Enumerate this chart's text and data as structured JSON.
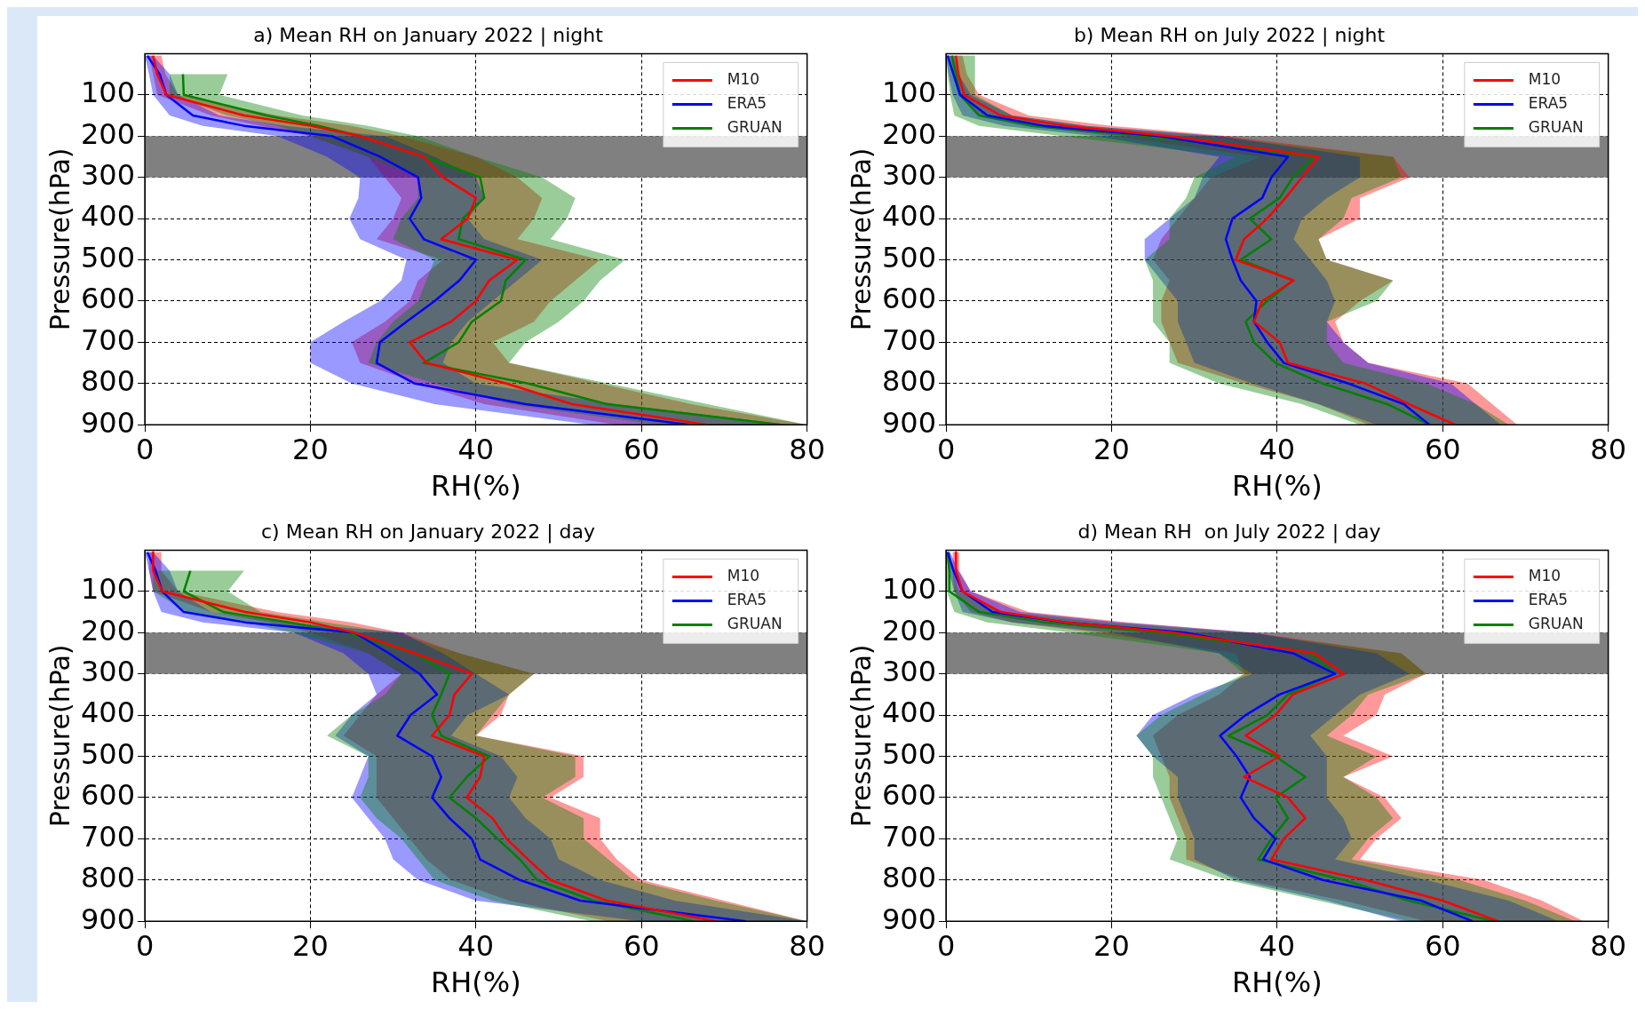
{
  "chart_data": [
    {
      "type": "line",
      "orientation": "horizontal",
      "title": "a) Mean RH on January 2022 | night",
      "xlabel": "RH(%)",
      "ylabel": "Pressure(hPa)",
      "x": [
        5,
        50,
        100,
        150,
        175,
        200,
        250,
        300,
        350,
        400,
        450,
        500,
        550,
        600,
        650,
        700,
        750,
        800,
        850,
        900
      ],
      "xlim": [
        0,
        80
      ],
      "xticks": [
        0,
        20,
        40,
        60,
        80
      ],
      "ylim": [
        900,
        0
      ],
      "yticks": [
        100,
        200,
        300,
        400,
        500,
        600,
        700,
        800,
        900
      ],
      "grid": true,
      "legend": "top right",
      "bands": [
        {
          "axis": "y",
          "from": 200,
          "to": 300,
          "color": "#808080"
        }
      ],
      "series": [
        {
          "name": "M10",
          "color": "#ff0000",
          "values": [
            1,
            1.5,
            2.6,
            12,
            20,
            26,
            33.7,
            36,
            40,
            39,
            35.8,
            45,
            41.6,
            40,
            37,
            32,
            34,
            43.7,
            51.6,
            67.9
          ],
          "lower": [
            0.5,
            1,
            1.5,
            8,
            14,
            20,
            27,
            29,
            31,
            30,
            28,
            36,
            33,
            32,
            29,
            25,
            26,
            33,
            41,
            57
          ],
          "upper": [
            2,
            2.5,
            4,
            16,
            25,
            31,
            40,
            45,
            48,
            47,
            45,
            55,
            52,
            49,
            47,
            42,
            44,
            55,
            66,
            80
          ]
        },
        {
          "name": "ERA5",
          "color": "#0000ff",
          "values": [
            0.3,
            1.8,
            2.6,
            5.8,
            12,
            22.6,
            28.4,
            33,
            33.4,
            32,
            33.7,
            40,
            38,
            35,
            31.6,
            28.4,
            28,
            32.6,
            46,
            65.8
          ],
          "lower": [
            0,
            0.5,
            1,
            3,
            7,
            16,
            22,
            26,
            25.8,
            24.7,
            26,
            31.6,
            31,
            28.4,
            24,
            20,
            20,
            25,
            35,
            54
          ],
          "upper": [
            1,
            3,
            4,
            9,
            17,
            29,
            35,
            40,
            41,
            39,
            41,
            48,
            45,
            42,
            39,
            37,
            36,
            40,
            57,
            78
          ]
        },
        {
          "name": "GRUAN",
          "color": "#008000",
          "values": [
            null,
            4.6,
            4.7,
            14.7,
            21,
            26,
            33.7,
            40.5,
            41,
            38.4,
            37.9,
            46,
            43.6,
            43,
            39.5,
            37.9,
            33.7,
            46.3,
            55.8,
            76.8
          ],
          "lower": [
            null,
            3,
            3,
            10,
            16,
            20,
            27,
            33,
            33,
            31,
            30,
            35,
            34,
            33,
            30,
            28,
            27,
            35,
            44,
            62
          ],
          "upper": [
            null,
            10,
            9,
            19,
            27,
            33,
            40,
            48,
            52,
            51,
            49,
            58,
            55,
            53,
            50,
            46,
            44,
            56,
            68,
            80
          ]
        }
      ]
    },
    {
      "type": "line",
      "orientation": "horizontal",
      "title": "b) Mean RH on July 2022 | night",
      "xlabel": "RH(%)",
      "ylabel": "Pressure(hPa)",
      "x": [
        5,
        50,
        100,
        150,
        175,
        200,
        250,
        300,
        350,
        400,
        450,
        500,
        550,
        600,
        650,
        700,
        750,
        800,
        850,
        900
      ],
      "xlim": [
        0,
        80
      ],
      "xticks": [
        0,
        20,
        40,
        60,
        80
      ],
      "ylim": [
        900,
        0
      ],
      "yticks": [
        100,
        200,
        300,
        400,
        500,
        600,
        700,
        800,
        900
      ],
      "grid": true,
      "legend": "top right",
      "bands": [
        {
          "axis": "y",
          "from": 200,
          "to": 300,
          "color": "#808080"
        }
      ],
      "series": [
        {
          "name": "M10",
          "color": "#ff0000",
          "values": [
            1.2,
            1.5,
            2.2,
            6.6,
            14.4,
            27,
            45,
            43,
            41,
            38.8,
            36,
            35,
            42,
            38.2,
            37.2,
            40.3,
            41.3,
            50.7,
            55.9,
            61.5
          ],
          "lower": [
            0.5,
            1,
            1.5,
            4,
            10,
            20,
            38,
            32,
            30,
            28,
            26,
            25,
            27,
            26,
            26,
            27,
            28,
            36,
            45,
            51
          ],
          "upper": [
            2,
            2.5,
            4,
            10,
            20,
            34,
            54,
            56,
            50,
            50,
            45,
            46,
            54,
            50,
            47,
            48,
            51,
            63,
            66,
            69
          ]
        },
        {
          "name": "ERA5",
          "color": "#0000ff",
          "values": [
            0.2,
            0.9,
            1.7,
            5,
            11.8,
            25.8,
            41.3,
            39.3,
            38.2,
            34.6,
            33.8,
            34.6,
            35.6,
            37.5,
            37.2,
            38.8,
            40.8,
            48.6,
            55.3,
            58.4
          ],
          "lower": [
            0,
            0.3,
            0.8,
            2,
            7,
            18,
            33,
            31,
            30,
            27,
            24,
            24,
            26,
            28,
            28,
            29,
            30,
            37,
            45,
            52
          ],
          "upper": [
            1,
            1.5,
            3,
            8,
            17,
            33,
            50,
            50,
            46,
            43,
            42,
            44,
            46,
            47,
            46,
            48,
            51,
            61,
            64,
            67
          ]
        },
        {
          "name": "GRUAN",
          "color": "#008000",
          "values": [
            0.7,
            1.2,
            1.7,
            4,
            10.3,
            23.7,
            44.5,
            41.9,
            40.3,
            36.7,
            39.3,
            35.6,
            41.9,
            38.8,
            36.2,
            37.2,
            39.8,
            45.5,
            53.3,
            58.4
          ],
          "lower": [
            0,
            0.2,
            0.5,
            1,
            4,
            14,
            35,
            30,
            29,
            27,
            27,
            24,
            25,
            25,
            25,
            27,
            27,
            33,
            43,
            50
          ],
          "upper": [
            3.5,
            3.5,
            3.5,
            8,
            17,
            32,
            54,
            55,
            49,
            48,
            45,
            46,
            54,
            52,
            46,
            46,
            48,
            58,
            64,
            68
          ]
        }
      ]
    },
    {
      "type": "line",
      "orientation": "horizontal",
      "title": "c) Mean RH on January 2022 | day",
      "xlabel": "RH(%)",
      "ylabel": "Pressure(hPa)",
      "x": [
        5,
        50,
        100,
        150,
        175,
        200,
        250,
        300,
        350,
        400,
        450,
        500,
        550,
        600,
        650,
        700,
        750,
        800,
        850,
        900
      ],
      "xlim": [
        0,
        80
      ],
      "xticks": [
        0,
        20,
        40,
        60,
        80
      ],
      "ylim": [
        900,
        0
      ],
      "yticks": [
        100,
        200,
        300,
        400,
        500,
        600,
        700,
        800,
        900
      ],
      "grid": true,
      "legend": "top right",
      "bands": [
        {
          "axis": "y",
          "from": 200,
          "to": 300,
          "color": "#808080"
        }
      ],
      "series": [
        {
          "name": "M10",
          "color": "#ff0000",
          "values": [
            1,
            1,
            2.1,
            12.1,
            20,
            25.3,
            32.6,
            39.5,
            37.4,
            36.8,
            34.7,
            41,
            40.5,
            38.9,
            42,
            43.7,
            46.3,
            49,
            55.8,
            69
          ],
          "lower": [
            0.5,
            0.5,
            1,
            8,
            15,
            20,
            27,
            31,
            28,
            26,
            24,
            28,
            28,
            28,
            30,
            32,
            34,
            37,
            44,
            56
          ],
          "upper": [
            2,
            2,
            4,
            16,
            25,
            31,
            38,
            47,
            44,
            43,
            40,
            53,
            53,
            49,
            55,
            55,
            57,
            60,
            70,
            80
          ]
        },
        {
          "name": "ERA5",
          "color": "#0000ff",
          "values": [
            0.3,
            1.3,
            2.1,
            4.7,
            12.1,
            25.3,
            29.5,
            33.2,
            35.3,
            32.1,
            30.5,
            34.7,
            35.8,
            34.7,
            36.8,
            39.5,
            40.5,
            45.3,
            52.6,
            72.6
          ],
          "lower": [
            0,
            0.5,
            1,
            2,
            7,
            18,
            24,
            27,
            28,
            25,
            23,
            27,
            26,
            25,
            27,
            29,
            30,
            33,
            40,
            60
          ],
          "upper": [
            1,
            3,
            4,
            8,
            17,
            31,
            36,
            40,
            44,
            39,
            37,
            43,
            45,
            44,
            46,
            49,
            50,
            55,
            64,
            80
          ]
        },
        {
          "name": "GRUAN",
          "color": "#008000",
          "values": [
            null,
            5.5,
            4.7,
            9.5,
            17.4,
            24.2,
            32.6,
            36.8,
            35.8,
            34.7,
            35.8,
            41.6,
            38.9,
            36.8,
            40,
            42.6,
            45.3,
            47.4,
            54.2,
            66.3
          ],
          "lower": [
            null,
            1,
            1,
            5,
            12,
            18,
            27,
            31,
            29,
            25,
            22,
            27,
            27,
            26,
            28,
            31,
            33,
            35,
            42,
            54
          ],
          "upper": [
            null,
            12,
            10,
            14,
            22,
            30,
            38,
            47,
            44,
            42,
            40,
            52,
            52,
            48,
            53,
            53,
            56,
            59,
            69,
            80
          ]
        }
      ]
    },
    {
      "type": "line",
      "orientation": "horizontal",
      "title": "d) Mean RH  on July 2022 | day",
      "xlabel": "RH(%)",
      "ylabel": "Pressure(hPa)",
      "x": [
        5,
        50,
        100,
        150,
        175,
        200,
        250,
        300,
        350,
        400,
        450,
        500,
        550,
        600,
        650,
        700,
        750,
        800,
        850,
        900
      ],
      "xlim": [
        0,
        80
      ],
      "xticks": [
        0,
        20,
        40,
        60,
        80
      ],
      "ylim": [
        900,
        0
      ],
      "yticks": [
        100,
        200,
        300,
        400,
        500,
        600,
        700,
        800,
        900
      ],
      "grid": true,
      "legend": "top right",
      "bands": [
        {
          "axis": "y",
          "from": 200,
          "to": 300,
          "color": "#808080"
        }
      ],
      "series": [
        {
          "name": "M10",
          "color": "#ff0000",
          "values": [
            1.2,
            1.2,
            2,
            6.6,
            14.4,
            27.4,
            44.5,
            48.1,
            41.9,
            39.8,
            36.2,
            40.3,
            36,
            41.3,
            43.4,
            40.8,
            39.3,
            50.7,
            60,
            66.7
          ],
          "lower": [
            0.8,
            0.8,
            1,
            3,
            8,
            18,
            35,
            36,
            33,
            28,
            25,
            26,
            27,
            27,
            28,
            29,
            29,
            36,
            48,
            58
          ],
          "upper": [
            1.6,
            1.6,
            3,
            10,
            22,
            37,
            55,
            58,
            53,
            52,
            48,
            54,
            48,
            53,
            55,
            52,
            50,
            65,
            72,
            77
          ]
        },
        {
          "name": "ERA5",
          "color": "#0000ff",
          "values": [
            0.2,
            0.9,
            2,
            5.6,
            14.4,
            28.9,
            41.9,
            47,
            40.3,
            36.2,
            33.1,
            35.1,
            36.7,
            35.6,
            37.2,
            39.8,
            38.3,
            45.5,
            57.4,
            63.6
          ],
          "lower": [
            0,
            0.3,
            1,
            2,
            8,
            20,
            33,
            37,
            30,
            25,
            23,
            25,
            28,
            28,
            29,
            30,
            30,
            35,
            46,
            55
          ],
          "upper": [
            0.5,
            1.5,
            3,
            9,
            21,
            37,
            52,
            56,
            50,
            47,
            44,
            46,
            46,
            46,
            48,
            49,
            47,
            58,
            68,
            74
          ]
        },
        {
          "name": "GRUAN",
          "color": "#008000",
          "values": [
            0.2,
            0.4,
            0.4,
            4,
            11.8,
            25.8,
            44,
            47,
            41.3,
            38.8,
            34.1,
            39.8,
            43.4,
            39.8,
            41.3,
            39.3,
            37.7,
            48.1,
            55.9,
            66.2
          ],
          "lower": [
            0,
            0.1,
            0.1,
            1,
            5,
            15,
            33,
            36,
            31,
            26,
            23,
            25,
            25,
            26,
            27,
            28,
            27,
            34,
            45,
            56
          ],
          "upper": [
            0.5,
            0.8,
            1.5,
            7,
            19,
            36,
            55,
            58,
            51,
            49,
            46,
            52,
            48,
            52,
            54,
            51,
            49,
            62,
            70,
            76
          ]
        }
      ]
    }
  ]
}
